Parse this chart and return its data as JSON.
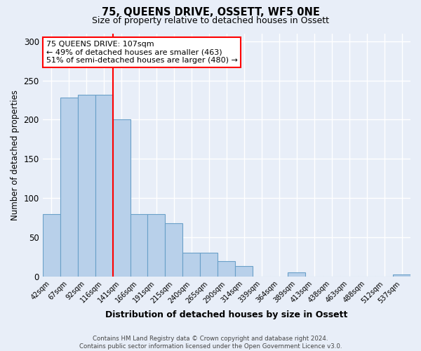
{
  "title": "75, QUEENS DRIVE, OSSETT, WF5 0NE",
  "subtitle": "Size of property relative to detached houses in Ossett",
  "xlabel": "Distribution of detached houses by size in Ossett",
  "ylabel": "Number of detached properties",
  "categories": [
    "42sqm",
    "67sqm",
    "92sqm",
    "116sqm",
    "141sqm",
    "166sqm",
    "191sqm",
    "215sqm",
    "240sqm",
    "265sqm",
    "290sqm",
    "314sqm",
    "339sqm",
    "364sqm",
    "389sqm",
    "413sqm",
    "438sqm",
    "463sqm",
    "488sqm",
    "512sqm",
    "537sqm"
  ],
  "values": [
    80,
    228,
    232,
    232,
    200,
    80,
    80,
    68,
    30,
    30,
    20,
    13,
    0,
    0,
    5,
    0,
    0,
    0,
    0,
    0,
    3
  ],
  "bar_color": "#b8d0ea",
  "bar_edge_color": "#6aa0c8",
  "vline_x": 3.5,
  "vline_color": "red",
  "annotation_text": "75 QUEENS DRIVE: 107sqm\n← 49% of detached houses are smaller (463)\n51% of semi-detached houses are larger (480) →",
  "annotation_box_color": "white",
  "annotation_box_edge_color": "red",
  "ylim": [
    0,
    310
  ],
  "yticks": [
    0,
    50,
    100,
    150,
    200,
    250,
    300
  ],
  "background_color": "#e8eef8",
  "grid_color": "#ffffff",
  "footer": "Contains HM Land Registry data © Crown copyright and database right 2024.\nContains public sector information licensed under the Open Government Licence v3.0."
}
